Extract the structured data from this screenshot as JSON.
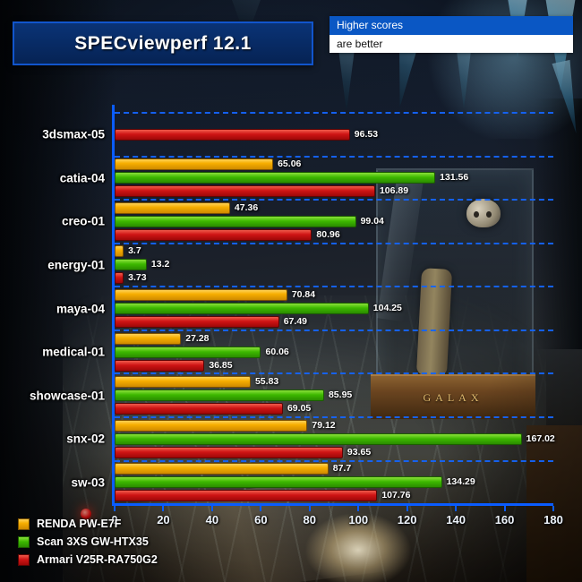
{
  "banner": {
    "line1": "Higher scores",
    "line2": "are better"
  },
  "background": {
    "case_label": "GALAX"
  },
  "chart_data": {
    "type": "bar",
    "orientation": "horizontal",
    "title": "SPECviewperf 12.1",
    "categories": [
      "3dsmax-05",
      "catia-04",
      "creo-01",
      "energy-01",
      "maya-04",
      "medical-01",
      "showcase-01",
      "snx-02",
      "sw-03"
    ],
    "series": [
      {
        "name": "RENDA PW-E7F",
        "color_key": "orange",
        "color": "#f2a100",
        "values": [
          null,
          "65.06",
          "47.36",
          "3.7",
          "70.84",
          "27.28",
          "55.83",
          "79.12",
          "87.7"
        ]
      },
      {
        "name": "Scan 3XS GW-HTX35",
        "color_key": "green",
        "color": "#3db800",
        "values": [
          null,
          "131.56",
          "99.04",
          "13.2",
          "104.25",
          "60.06",
          "85.95",
          "167.02",
          "134.29"
        ]
      },
      {
        "name": "Armari V25R-RA750G2",
        "color_key": "red",
        "color": "#cf1414",
        "values": [
          "96.53",
          "106.89",
          "80.96",
          "3.73",
          "67.49",
          "36.85",
          "69.05",
          "93.65",
          "107.76"
        ]
      }
    ],
    "xlim": [
      0,
      180
    ],
    "xticks": [
      0,
      20,
      40,
      60,
      80,
      100,
      120,
      140,
      160,
      180
    ],
    "axis_color": "#0a5cff",
    "grid": "dashed-horizontal-group-separators",
    "legend_position": "bottom-left"
  }
}
